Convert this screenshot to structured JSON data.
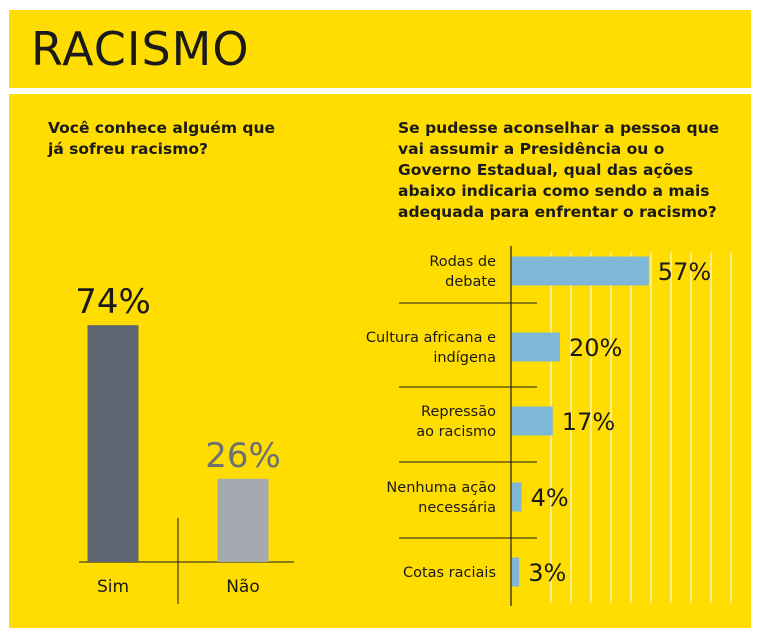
{
  "header": {
    "title": "RACISMO"
  },
  "colors": {
    "panel": "#ffdd00",
    "sim_bar": "#5c6670",
    "nao_bar": "#a5aab0",
    "h_bar": "#7fb8d6",
    "text": "#1a1a1a"
  },
  "left_question": "Você conhece alguém que já sofreu racismo?",
  "right_question": "Se pudesse aconselhar a pessoa que vai assumir a Presidência ou o Governo Estadual, qual das ações abaixo indicaria como sendo a mais adequada para enfrentar o racismo?",
  "chart_data": [
    {
      "type": "bar",
      "title": "Você conhece alguém que já sofreu racismo?",
      "categories": [
        "Sim",
        "Não"
      ],
      "values": [
        74,
        26
      ],
      "value_labels": [
        "74%",
        "26%"
      ],
      "unit": "%",
      "ylim": [
        0,
        100
      ]
    },
    {
      "type": "bar",
      "orientation": "horizontal",
      "title": "Se pudesse aconselhar a pessoa que vai assumir a Presidência ou o Governo Estadual, qual das ações abaixo indicaria como sendo a mais adequada para enfrentar o racismo?",
      "categories": [
        [
          "Rodas de",
          "debate"
        ],
        [
          "Cultura africana e",
          "indígena"
        ],
        [
          "Repressão",
          "ao racismo"
        ],
        [
          "Nenhuma ação",
          "necessária"
        ],
        [
          "Cotas raciais"
        ]
      ],
      "values": [
        57,
        20,
        17,
        4,
        3
      ],
      "value_labels": [
        "57%",
        "20%",
        "17%",
        "4%",
        "3%"
      ],
      "unit": "%",
      "grid": true
    }
  ]
}
